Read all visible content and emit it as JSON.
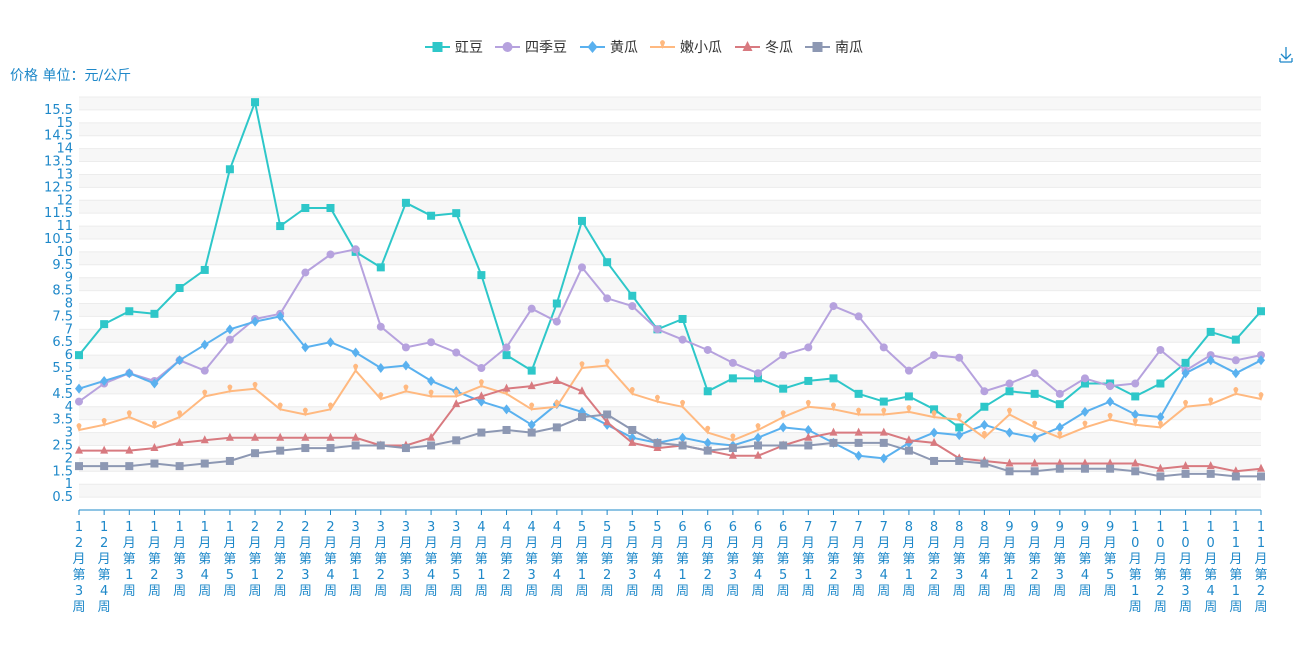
{
  "chart_data": {
    "type": "line",
    "ylabel": "价格 单位：元/公斤",
    "ylim": [
      0,
      16
    ],
    "y_ticks": [
      0.5,
      1,
      1.5,
      2,
      2.5,
      3,
      3.5,
      4,
      4.5,
      5,
      5.5,
      6,
      6.5,
      7,
      7.5,
      8,
      8.5,
      9,
      9.5,
      10,
      10.5,
      11,
      11.5,
      12,
      12.5,
      13,
      13.5,
      14,
      14.5,
      15,
      15.5
    ],
    "categories": [
      "12月第3周",
      "12月第4周",
      "1月第1周",
      "1月第2周",
      "1月第3周",
      "1月第4周",
      "1月第5周",
      "2月第1周",
      "2月第2周",
      "2月第3周",
      "2月第4周",
      "3月第1周",
      "3月第2周",
      "3月第3周",
      "3月第4周",
      "3月第5周",
      "4月第1周",
      "4月第2周",
      "4月第3周",
      "4月第4周",
      "5月第1周",
      "5月第2周",
      "5月第3周",
      "5月第4周",
      "6月第1周",
      "6月第2周",
      "6月第3周",
      "6月第4周",
      "6月第5周",
      "7月第1周",
      "7月第2周",
      "7月第3周",
      "7月第4周",
      "8月第1周",
      "8月第2周",
      "8月第3周",
      "8月第4周",
      "9月第1周",
      "9月第2周",
      "9月第3周",
      "9月第4周",
      "9月第5周",
      "10月第1周",
      "10月第2周",
      "10月第3周",
      "10月第4周",
      "11月第1周",
      "11月第2周"
    ],
    "grid": true,
    "legend_position": "top",
    "series": [
      {
        "name": "豇豆",
        "color": "#2EC7C9",
        "marker": "square",
        "values": [
          6.0,
          7.2,
          7.7,
          7.6,
          8.6,
          9.3,
          13.2,
          15.8,
          11.0,
          11.7,
          11.7,
          10.0,
          9.4,
          11.9,
          11.4,
          11.5,
          9.1,
          6.0,
          5.4,
          8.0,
          11.2,
          9.6,
          8.3,
          7.0,
          7.4,
          4.6,
          5.1,
          5.1,
          4.7,
          5.0,
          5.1,
          4.5,
          4.2,
          4.4,
          3.9,
          3.2,
          4.0,
          4.6,
          4.5,
          4.1,
          4.9,
          4.9,
          4.4,
          4.9,
          5.7,
          6.9,
          6.6,
          7.7
        ]
      },
      {
        "name": "四季豆",
        "color": "#B6A2DE",
        "marker": "circle",
        "values": [
          4.2,
          4.9,
          5.3,
          5.0,
          5.8,
          5.4,
          6.6,
          7.4,
          7.6,
          9.2,
          9.9,
          10.1,
          7.1,
          6.3,
          6.5,
          6.1,
          5.5,
          6.3,
          7.8,
          7.3,
          9.4,
          8.2,
          7.9,
          7.0,
          6.6,
          6.2,
          5.7,
          5.3,
          6.0,
          6.3,
          7.9,
          7.5,
          6.3,
          5.4,
          6.0,
          5.9,
          4.6,
          4.9,
          5.3,
          4.5,
          5.1,
          4.8,
          4.9,
          6.2,
          5.4,
          6.0,
          5.8,
          6.0
        ]
      },
      {
        "name": "黄瓜",
        "color": "#5AB1EF",
        "marker": "diamond",
        "values": [
          4.7,
          5.0,
          5.3,
          4.9,
          5.8,
          6.4,
          7.0,
          7.3,
          7.5,
          6.3,
          6.5,
          6.1,
          5.5,
          5.6,
          5.0,
          4.6,
          4.2,
          3.9,
          3.3,
          4.1,
          3.8,
          3.3,
          2.8,
          2.6,
          2.8,
          2.6,
          2.5,
          2.8,
          3.2,
          3.1,
          2.6,
          2.1,
          2.0,
          2.6,
          3.0,
          2.9,
          3.3,
          3.0,
          2.8,
          3.2,
          3.8,
          4.2,
          3.7,
          3.6,
          5.3,
          5.8,
          5.3,
          5.8
        ]
      },
      {
        "name": "嫩小瓜",
        "color": "#FFB980",
        "marker": "pin",
        "values": [
          3.1,
          3.3,
          3.6,
          3.2,
          3.6,
          4.4,
          4.6,
          4.7,
          3.9,
          3.7,
          3.9,
          5.4,
          4.3,
          4.6,
          4.4,
          4.4,
          4.8,
          4.5,
          3.9,
          4.0,
          5.5,
          5.6,
          4.5,
          4.2,
          4.0,
          3.0,
          2.7,
          3.1,
          3.6,
          4.0,
          3.9,
          3.7,
          3.7,
          3.8,
          3.6,
          3.5,
          2.8,
          3.7,
          3.2,
          2.8,
          3.2,
          3.5,
          3.3,
          3.2,
          4.0,
          4.1,
          4.5,
          4.3
        ]
      },
      {
        "name": "冬瓜",
        "color": "#D87A80",
        "marker": "triangle",
        "values": [
          2.3,
          2.3,
          2.3,
          2.4,
          2.6,
          2.7,
          2.8,
          2.8,
          2.8,
          2.8,
          2.8,
          2.8,
          2.5,
          2.5,
          2.8,
          4.1,
          4.4,
          4.7,
          4.8,
          5.0,
          4.6,
          3.4,
          2.6,
          2.4,
          2.5,
          2.3,
          2.1,
          2.1,
          2.5,
          2.8,
          3.0,
          3.0,
          3.0,
          2.7,
          2.6,
          2.0,
          1.9,
          1.8,
          1.8,
          1.8,
          1.8,
          1.8,
          1.8,
          1.6,
          1.7,
          1.7,
          1.5,
          1.6
        ]
      },
      {
        "name": "南瓜",
        "color": "#8D98B3",
        "marker": "square",
        "values": [
          1.7,
          1.7,
          1.7,
          1.8,
          1.7,
          1.8,
          1.9,
          2.2,
          2.3,
          2.4,
          2.4,
          2.5,
          2.5,
          2.4,
          2.5,
          2.7,
          3.0,
          3.1,
          3.0,
          3.2,
          3.6,
          3.7,
          3.1,
          2.6,
          2.5,
          2.3,
          2.4,
          2.5,
          2.5,
          2.5,
          2.6,
          2.6,
          2.6,
          2.3,
          1.9,
          1.9,
          1.8,
          1.5,
          1.5,
          1.6,
          1.6,
          1.6,
          1.5,
          1.3,
          1.4,
          1.4,
          1.3,
          1.3
        ]
      }
    ]
  }
}
